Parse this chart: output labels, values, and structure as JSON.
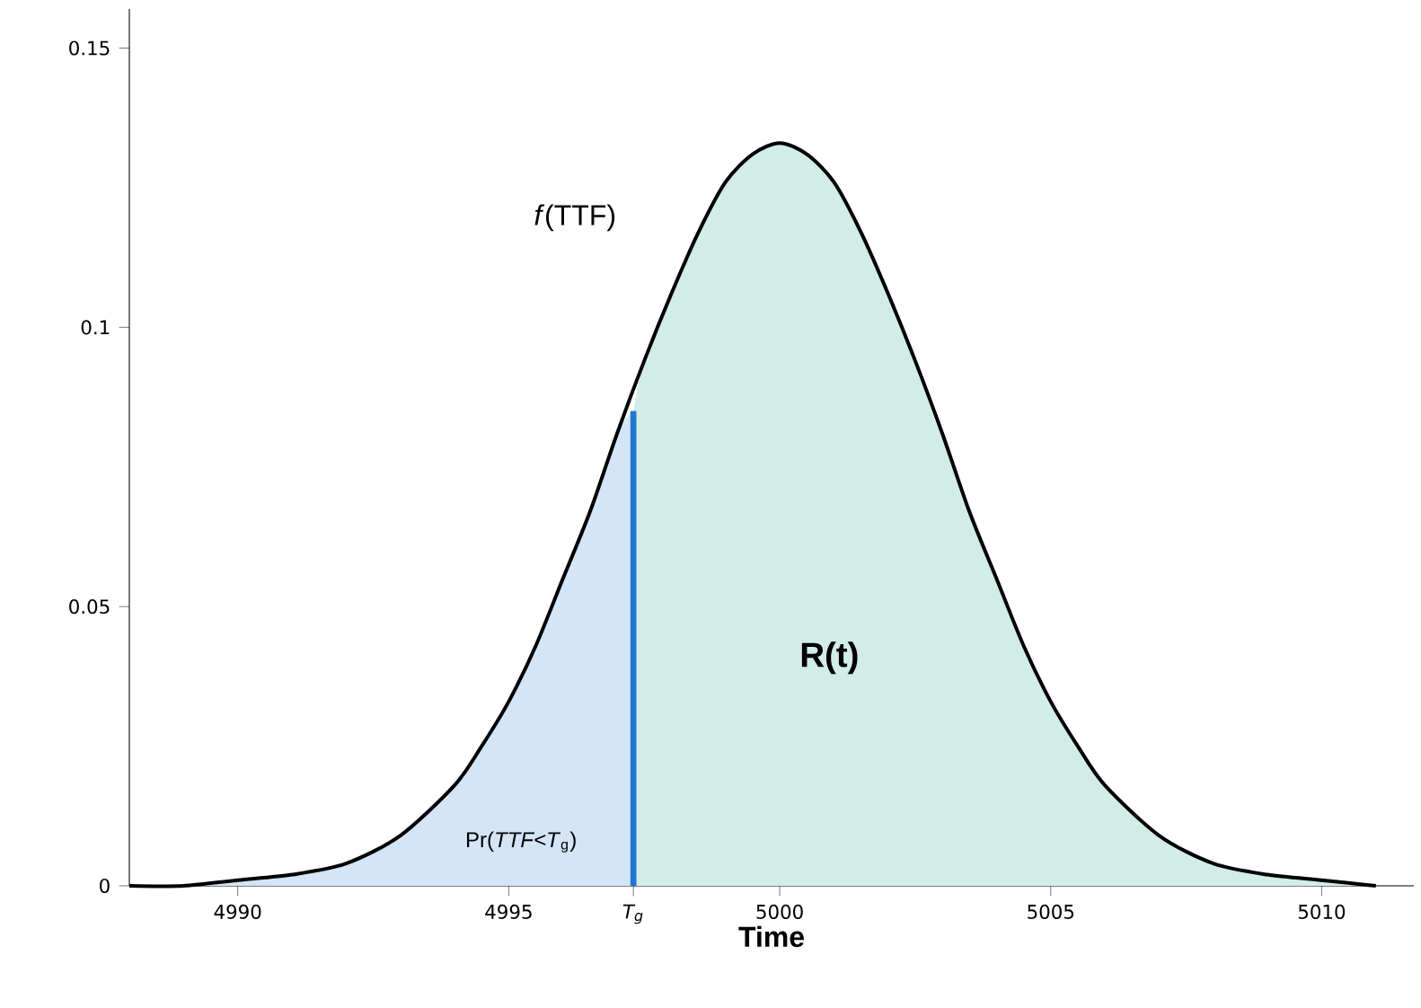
{
  "chart_data": {
    "type": "line",
    "xlabel": "Time",
    "x": [
      4988,
      4989,
      4990,
      4991,
      4992,
      4993,
      4994,
      4994.5,
      4995,
      4995.5,
      4996,
      4996.5,
      4997,
      4997.5,
      4998,
      4998.5,
      4999,
      4999.5,
      5000,
      5000.5,
      5001,
      5001.5,
      5002,
      5002.5,
      5003,
      5003.5,
      5004,
      5004.5,
      5005,
      5005.5,
      5006,
      5007,
      5008,
      5009,
      5010,
      5011
    ],
    "series": [
      {
        "type": "area",
        "color": "#d3e5f7",
        "x": [
          4988,
          4989,
          4990,
          4991,
          4992,
          4993,
          4994,
          4994.5,
          4995,
          4995.5,
          4996,
          4996.5,
          4997,
          4997.3
        ],
        "values": [
          0,
          0,
          0.001,
          0.002,
          0.004,
          0.009,
          0.018,
          0.025,
          0.033,
          0.043,
          0.055,
          0.067,
          0.081,
          0.085
        ]
      },
      {
        "type": "area",
        "color": "#d2ece8",
        "x": [
          4997.3,
          4997.5,
          4998,
          4998.5,
          4999,
          4999.5,
          5000,
          5000.5,
          5001,
          5001.5,
          5002,
          5002.5,
          5003,
          5003.5,
          5004,
          5004.5,
          5005,
          5005.5,
          5006,
          5007,
          5008,
          5009,
          5010,
          5011
        ],
        "values": [
          0.085,
          0.094,
          0.106,
          0.117,
          0.126,
          0.131,
          0.133,
          0.131,
          0.126,
          0.117,
          0.106,
          0.094,
          0.081,
          0.067,
          0.055,
          0.043,
          0.033,
          0.025,
          0.018,
          0.009,
          0.004,
          0.002,
          0.001,
          0
        ]
      },
      {
        "color": "#000000",
        "values": [
          0,
          0,
          0.001,
          0.002,
          0.004,
          0.009,
          0.018,
          0.025,
          0.033,
          0.043,
          0.055,
          0.067,
          0.081,
          0.094,
          0.106,
          0.117,
          0.126,
          0.131,
          0.133,
          0.131,
          0.126,
          0.117,
          0.106,
          0.094,
          0.081,
          0.067,
          0.055,
          0.043,
          0.033,
          0.025,
          0.018,
          0.009,
          0.004,
          0.002,
          0.001,
          0
        ]
      },
      {
        "color": "#1f77d0",
        "x": [
          4997.3,
          4997.3
        ],
        "values": [
          0,
          0.085
        ]
      }
    ],
    "xlim": [
      4988,
      5011.7
    ],
    "ylim": [
      0,
      0.157
    ],
    "xticks": [
      4990,
      4995,
      {
        "value": 4997.3,
        "label": "T$_{g}$"
      },
      5000,
      5005,
      5010
    ],
    "yticks": [
      0,
      0.05,
      0.1,
      0.15
    ],
    "annotations": [
      "*f*(TTF)",
      "R(t)",
      "Pr(*TTF<T*$_{g}$)"
    ],
    "grid": false,
    "marker": "none",
    "line_style": "solid"
  }
}
